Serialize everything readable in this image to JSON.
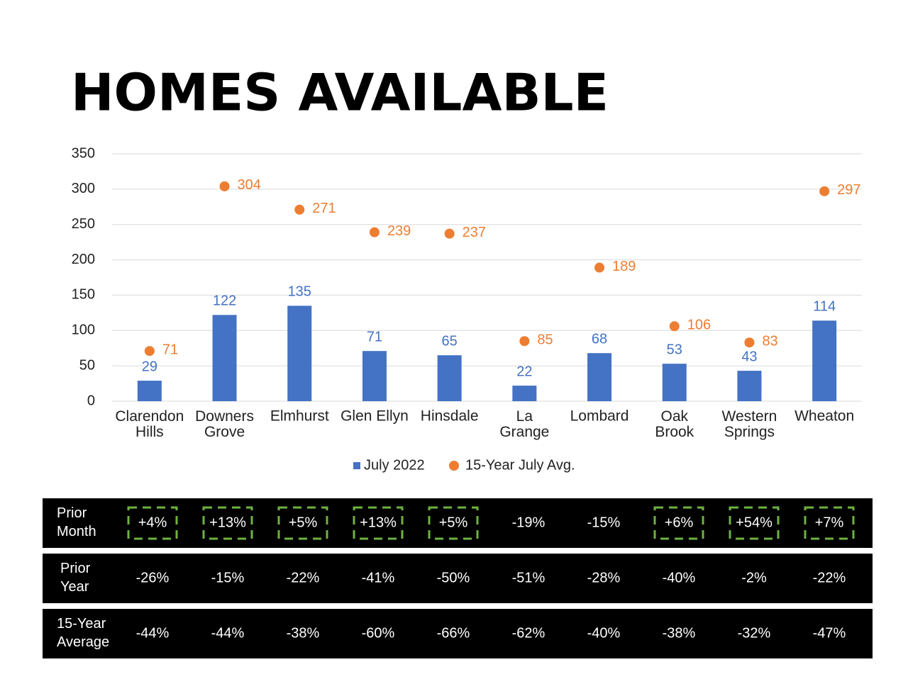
{
  "chart_data": {
    "type": "bar",
    "title": "HOMES AVAILABLE",
    "categories": [
      "Clarendon\nHills",
      "Downers\nGrove",
      "Elmhurst",
      "Glen Ellyn",
      "Hinsdale",
      "La\nGrange",
      "Lombard",
      "Oak\nBrook",
      "Western\nSprings",
      "Wheaton"
    ],
    "series": [
      {
        "name": "July 2022",
        "type": "bar",
        "color": "#4472c4",
        "values": [
          29,
          122,
          135,
          71,
          65,
          22,
          68,
          53,
          43,
          114
        ]
      },
      {
        "name": "15-Year July Avg.",
        "type": "scatter",
        "color": "#ed7d31",
        "values": [
          71,
          304,
          271,
          239,
          237,
          85,
          189,
          106,
          83,
          297
        ]
      }
    ],
    "ylim": [
      0,
      350
    ],
    "yticks": [
      0,
      50,
      100,
      150,
      200,
      250,
      300,
      350
    ],
    "grid": true,
    "legend": "bottom"
  },
  "table": {
    "rows": [
      {
        "label": "Prior\nMonth",
        "values": [
          "+4%",
          "+13%",
          "+5%",
          "+13%",
          "+5%",
          "-19%",
          "-15%",
          "+6%",
          "+54%",
          "+7%"
        ]
      },
      {
        "label": "Prior\nYear",
        "values": [
          "-26%",
          "-15%",
          "-22%",
          "-41%",
          "-50%",
          "-51%",
          "-28%",
          "-40%",
          "-2%",
          "-22%"
        ]
      },
      {
        "label": "15-Year\nAverage",
        "values": [
          "-44%",
          "-44%",
          "-38%",
          "-60%",
          "-66%",
          "-62%",
          "-40%",
          "-38%",
          "-32%",
          "-47%"
        ]
      }
    ]
  }
}
